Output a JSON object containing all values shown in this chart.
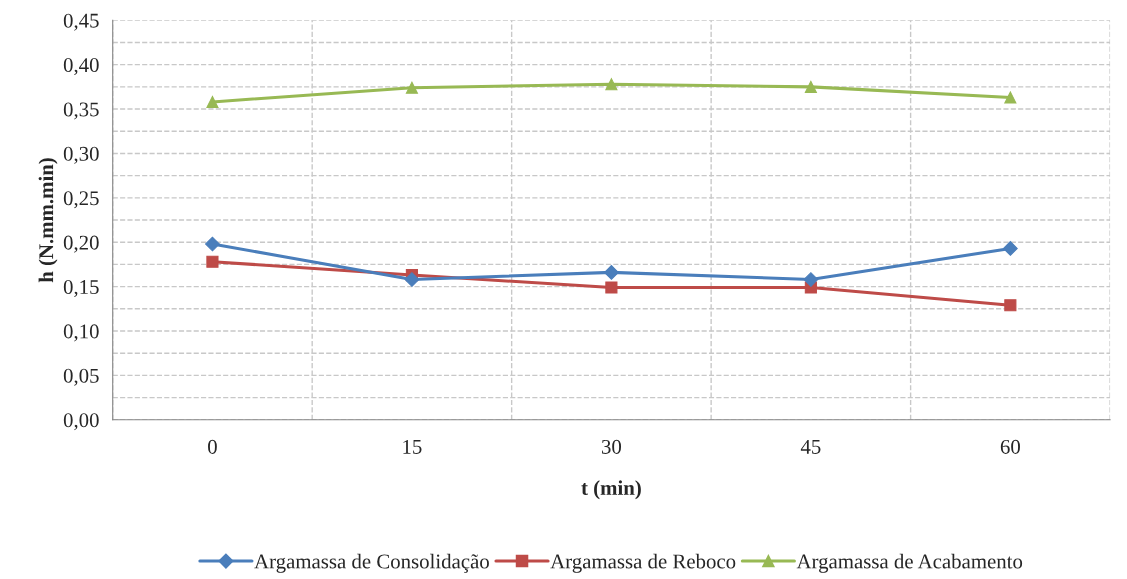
{
  "chart_data": {
    "type": "line",
    "xlabel": "t (min)",
    "ylabel": "h (N.mm.min)",
    "categories": [
      "0",
      "15",
      "30",
      "45",
      "60"
    ],
    "series": [
      {
        "name": "Argamassa de Consolidação",
        "color": "#4a7ebb",
        "marker": "diamond",
        "values": [
          0.198,
          0.158,
          0.166,
          0.158,
          0.193
        ]
      },
      {
        "name": "Argamassa de Reboco",
        "color": "#be4b48",
        "marker": "square",
        "values": [
          0.178,
          0.163,
          0.149,
          0.149,
          0.129
        ]
      },
      {
        "name": "Argamassa de Acabamento",
        "color": "#98b954",
        "marker": "triangle",
        "values": [
          0.358,
          0.374,
          0.378,
          0.375,
          0.363
        ]
      }
    ],
    "ylim": [
      0,
      0.45
    ],
    "yticks": [
      {
        "value": 0,
        "label": "0,00"
      },
      {
        "value": 0.05,
        "label": "0,05"
      },
      {
        "value": 0.1,
        "label": "0,10"
      },
      {
        "value": 0.15,
        "label": "0,15"
      },
      {
        "value": 0.2,
        "label": "0,20"
      },
      {
        "value": 0.25,
        "label": "0,25"
      },
      {
        "value": 0.3,
        "label": "0,30"
      },
      {
        "value": 0.35,
        "label": "0,35"
      },
      {
        "value": 0.4,
        "label": "0,40"
      },
      {
        "value": 0.45,
        "label": "0,45"
      }
    ],
    "grid": true,
    "legend": "bottom",
    "line_style": "solid"
  }
}
